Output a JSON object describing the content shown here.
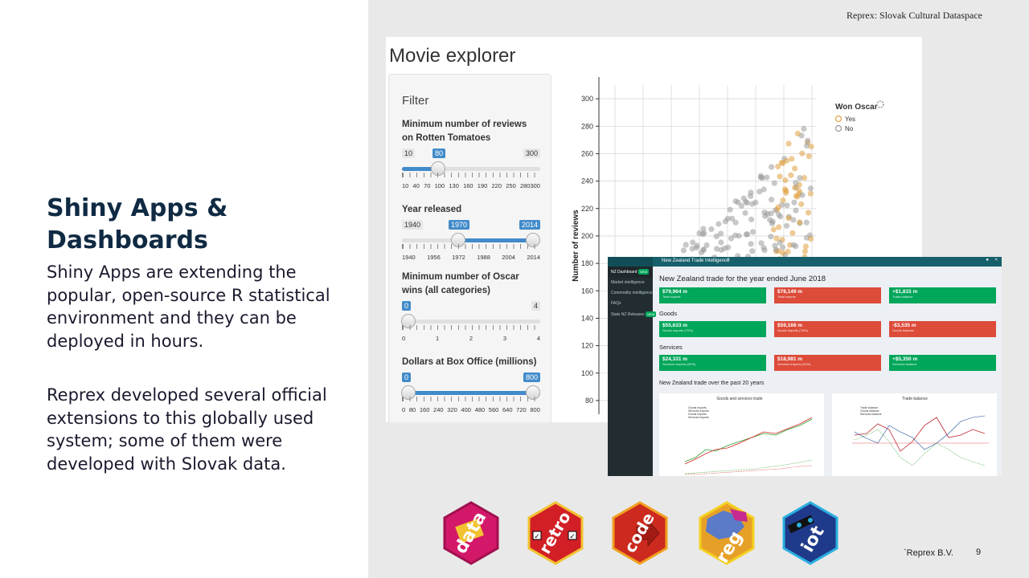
{
  "slide": {
    "title": "Shiny Apps & Dashboards",
    "paragraph1": "Shiny Apps are extending the popular, open-source R statistical environment and they can be deployed in hours.",
    "paragraph2": "Reprex developed several official extensions to this globally used system; some of them were developed with Slovak data.",
    "header_note": "Reprex: Slovak Cultural Dataspace",
    "footer_company": "`Reprex B.V.",
    "page_number": "9"
  },
  "movie_explorer": {
    "title": "Movie explorer",
    "filter_heading": "Filter",
    "filters": [
      {
        "label": "Minimum number of reviews on Rotten Tomatoes",
        "min": "10",
        "max": "300",
        "value": "80",
        "grid": [
          "10",
          "40",
          "70",
          "100",
          "130",
          "160",
          "190",
          "220",
          "250",
          "280300"
        ]
      },
      {
        "label": "Year released",
        "min": "1940",
        "max": "2014",
        "value_from": "1970",
        "value_to": "2014",
        "grid": [
          "1940",
          "1956",
          "1972",
          "1988",
          "2004",
          "2014"
        ]
      },
      {
        "label": "Minimum number of Oscar wins (all categories)",
        "min": "0",
        "max": "4",
        "value": "0",
        "grid": [
          "0",
          "1",
          "2",
          "3",
          "4"
        ]
      },
      {
        "label": "Dollars at Box Office (millions)",
        "min": "0",
        "max": "800",
        "value_from": "0",
        "value_to": "800",
        "grid": [
          "0",
          "80",
          "160",
          "240",
          "320",
          "400",
          "480",
          "560",
          "640",
          "720",
          "800"
        ]
      }
    ],
    "chart_data": {
      "type": "scatter",
      "ylabel": "Number of reviews",
      "yticks": [
        80,
        100,
        120,
        140,
        160,
        180,
        200,
        220,
        240,
        260,
        280,
        300
      ],
      "legend_title": "Won Oscar",
      "legend": [
        {
          "name": "Yes",
          "color": "#e0a040"
        },
        {
          "name": "No",
          "color": "#9a9a9a"
        }
      ]
    }
  },
  "trade_dashboard": {
    "app_name": "New Zealand Trade Intelligence",
    "nav": [
      {
        "label": "NZ Dashboard",
        "badge": "NEW"
      },
      {
        "label": "Market intelligence",
        "badge": ""
      },
      {
        "label": "Commodity intelligence",
        "badge": ""
      },
      {
        "label": "FAQs",
        "badge": ""
      },
      {
        "label": "Stats NZ Releases",
        "badge": "NEW"
      }
    ],
    "heading": "New Zealand trade for the year ended June 2018",
    "total": [
      {
        "value": "$79,964 m",
        "label": "Total exports",
        "color": "green"
      },
      {
        "value": "$78,149 m",
        "label": "Total imports",
        "color": "red"
      },
      {
        "value": "+$1,815 m",
        "label": "Trade balance",
        "color": "green"
      }
    ],
    "goods_title": "Goods",
    "goods": [
      {
        "value": "$55,633 m",
        "label": "Goods exports (70%)",
        "color": "green"
      },
      {
        "value": "$59,168 m",
        "label": "Goods imports (76%)",
        "color": "red"
      },
      {
        "value": "-$3,535 m",
        "label": "Goods balance",
        "color": "red"
      }
    ],
    "services_title": "Services",
    "services": [
      {
        "value": "$24,331 m",
        "label": "Services exports (30%)",
        "color": "green"
      },
      {
        "value": "$18,981 m",
        "label": "Services imports (24%)",
        "color": "red"
      },
      {
        "value": "+$5,350 m",
        "label": "Services balance",
        "color": "green"
      }
    ],
    "trend_title": "New Zealand trade over the past 20 years",
    "chart_titles": [
      "Goods and services trade",
      "Trade balance"
    ],
    "legend_left": [
      "Goods exports",
      "Services exports",
      "Goods imports",
      "Services imports"
    ],
    "legend_right": [
      "Trade balance",
      "Goods balance",
      "Services balance"
    ]
  },
  "stickers": [
    {
      "label": "data",
      "bg": "#d3186a",
      "border": "#a0104f"
    },
    {
      "label": "retro",
      "bg": "#d21f26",
      "border": "#f2c230"
    },
    {
      "label": "code",
      "bg": "#cc2a1e",
      "border": "#f0a020"
    },
    {
      "label": "reg",
      "bg": "#e6a028",
      "border": "#f4d020"
    },
    {
      "label": "iot",
      "bg": "#1f3a8a",
      "border": "#2ab0e0"
    }
  ]
}
